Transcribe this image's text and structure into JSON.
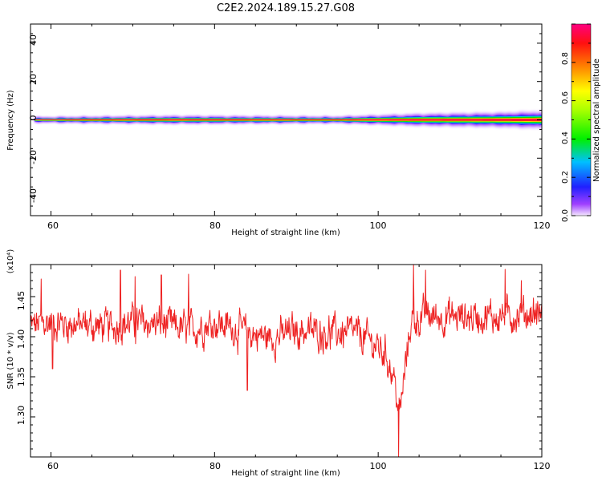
{
  "title": "C2E2.2024.189.15.27.G08",
  "colors": {
    "snr_line": "#ee2222",
    "axes": "#000000"
  },
  "chart_data": [
    {
      "type": "heatmap",
      "xlabel": "Height of straight line (km)",
      "ylabel": "Frequency (Hz)",
      "xlim": [
        57.5,
        120
      ],
      "ylim": [
        -50,
        50
      ],
      "xticks": [
        "60",
        "80",
        "100",
        "120"
      ],
      "yticks": [
        "40",
        "20",
        "0",
        "-20",
        "-40"
      ],
      "band_center_hz": 0,
      "band_start_km": 58,
      "halo_spread_hz": [
        {
          "x": 58,
          "hz": 0.8
        },
        {
          "x": 65,
          "hz": 1.0
        },
        {
          "x": 75,
          "hz": 1.2
        },
        {
          "x": 85,
          "hz": 1.1
        },
        {
          "x": 95,
          "hz": 1.0
        },
        {
          "x": 100,
          "hz": 1.4
        },
        {
          "x": 105,
          "hz": 1.8
        },
        {
          "x": 110,
          "hz": 2.0
        },
        {
          "x": 115,
          "hz": 2.2
        },
        {
          "x": 120,
          "hz": 2.6
        }
      ],
      "colorbar": {
        "label": "Normalized spectral amplitude",
        "range": [
          0.0,
          1.0
        ],
        "ticks": [
          "0.0",
          "0.2",
          "0.4",
          "0.6",
          "0.8"
        ]
      }
    },
    {
      "type": "line",
      "xlabel": "Height of straight line (km)",
      "ylabel": "SNR (10 * v/v)",
      "y_multiplier_label": "(x10⁴)",
      "xlim": [
        57.5,
        120
      ],
      "ylim": [
        1.25,
        1.49
      ],
      "xticks": [
        "60",
        "80",
        "100",
        "120"
      ],
      "yticks": [
        "1.45",
        "1.40",
        "1.35",
        "1.30"
      ],
      "trend": [
        {
          "x": 57.5,
          "y": 1.413
        },
        {
          "x": 60,
          "y": 1.418
        },
        {
          "x": 63,
          "y": 1.415
        },
        {
          "x": 67,
          "y": 1.412
        },
        {
          "x": 70,
          "y": 1.418
        },
        {
          "x": 74,
          "y": 1.415
        },
        {
          "x": 77,
          "y": 1.408
        },
        {
          "x": 80,
          "y": 1.418
        },
        {
          "x": 84,
          "y": 1.405
        },
        {
          "x": 87,
          "y": 1.398
        },
        {
          "x": 90,
          "y": 1.408
        },
        {
          "x": 94,
          "y": 1.405
        },
        {
          "x": 97,
          "y": 1.405
        },
        {
          "x": 99,
          "y": 1.395
        },
        {
          "x": 101,
          "y": 1.378
        },
        {
          "x": 102,
          "y": 1.345
        },
        {
          "x": 102.6,
          "y": 1.3
        },
        {
          "x": 103.2,
          "y": 1.35
        },
        {
          "x": 104,
          "y": 1.42
        },
        {
          "x": 106,
          "y": 1.425
        },
        {
          "x": 110,
          "y": 1.425
        },
        {
          "x": 115,
          "y": 1.425
        },
        {
          "x": 120,
          "y": 1.43
        }
      ],
      "spikes": [
        {
          "x": 58.8,
          "y": 1.472
        },
        {
          "x": 60.2,
          "y": 1.36
        },
        {
          "x": 68.5,
          "y": 1.483
        },
        {
          "x": 70.3,
          "y": 1.475
        },
        {
          "x": 73.5,
          "y": 1.477
        },
        {
          "x": 76.8,
          "y": 1.478
        },
        {
          "x": 84.0,
          "y": 1.333
        },
        {
          "x": 102.5,
          "y": 1.25
        },
        {
          "x": 104.3,
          "y": 1.49
        },
        {
          "x": 105.8,
          "y": 1.483
        },
        {
          "x": 115.5,
          "y": 1.484
        },
        {
          "x": 117.5,
          "y": 1.47
        }
      ],
      "noise_amplitude": 0.022
    }
  ]
}
